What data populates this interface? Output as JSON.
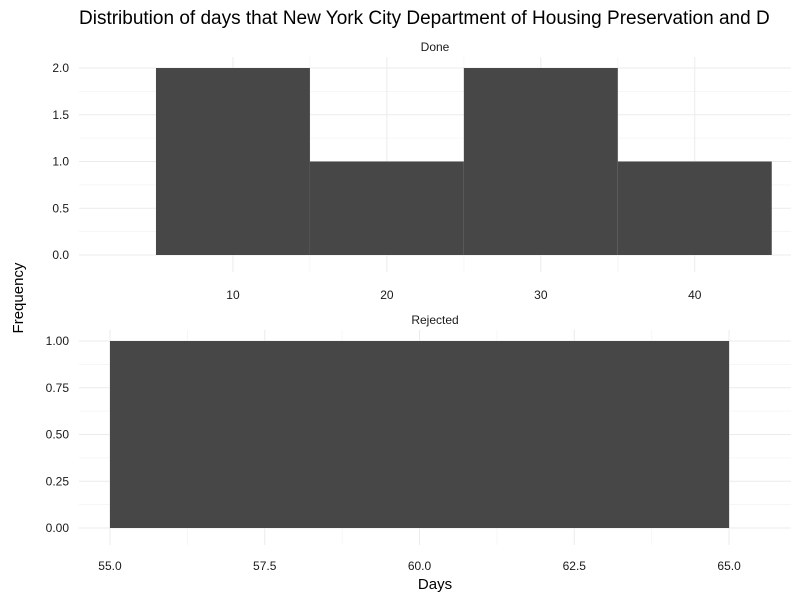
{
  "chart_data": {
    "type": "bar",
    "title": "Distribution of days that New York City Department of Housing Preservation and D",
    "xlabel": "Days",
    "ylabel": "Frequency",
    "grid": true,
    "facets": [
      {
        "name": "Done",
        "bins": [
          {
            "start": 5,
            "end": 15,
            "count": 2
          },
          {
            "start": 15,
            "end": 25,
            "count": 1
          },
          {
            "start": 25,
            "end": 35,
            "count": 2
          },
          {
            "start": 35,
            "end": 45,
            "count": 1
          }
        ],
        "xlim": [
          0,
          46.25
        ],
        "ylim": [
          0,
          2.0
        ],
        "xticks": [
          10,
          20,
          30,
          40
        ],
        "xtick_labels": [
          "10",
          "20",
          "30",
          "40"
        ],
        "yticks": [
          0,
          0.5,
          1.0,
          1.5,
          2.0
        ],
        "ytick_labels": [
          "0.0",
          "0.5",
          "1.0",
          "1.5",
          "2.0"
        ]
      },
      {
        "name": "Rejected",
        "bins": [
          {
            "start": 55,
            "end": 65,
            "count": 1
          }
        ],
        "xlim": [
          54.5,
          66.0
        ],
        "ylim": [
          0,
          1.0
        ],
        "xticks": [
          55,
          57.5,
          60,
          62.5,
          65
        ],
        "xtick_labels": [
          "55.0",
          "57.5",
          "60.0",
          "62.5",
          "65.0"
        ],
        "yticks": [
          0,
          0.25,
          0.5,
          0.75,
          1.0
        ],
        "ytick_labels": [
          "0.00",
          "0.25",
          "0.50",
          "0.75",
          "1.00"
        ]
      }
    ]
  }
}
